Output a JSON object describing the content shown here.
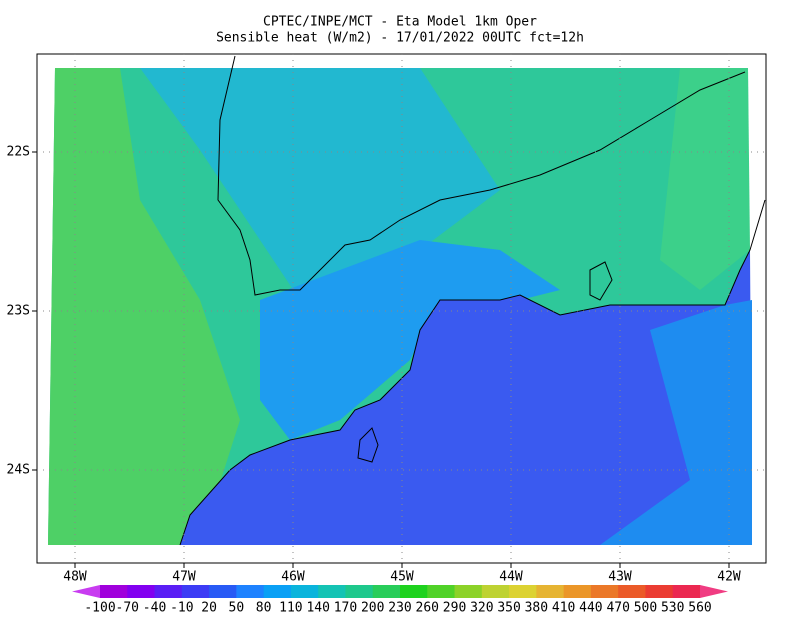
{
  "map": {
    "title": "CPTEC/INPE/MCT -  Eta Model 1km Oper",
    "subtitle": "Sensible heat (W/m2) - 17/01/2022 00UTC fct=12h",
    "lon_labels": [
      "48W",
      "47W",
      "46W",
      "45W",
      "44W",
      "43W",
      "42W"
    ],
    "lat_labels": [
      "22S",
      "23S",
      "24S"
    ],
    "colorbar": {
      "ticks": [
        -100,
        -70,
        -40,
        -10,
        20,
        50,
        80,
        110,
        140,
        170,
        200,
        230,
        260,
        290,
        320,
        350,
        380,
        410,
        440,
        470,
        500,
        530,
        560
      ],
      "colors": [
        "#c83cf0",
        "#a000dc",
        "#8200f0",
        "#5a1ef5",
        "#3c3cf5",
        "#285af5",
        "#1e82ff",
        "#0aa0f5",
        "#0ab4dc",
        "#14c3b4",
        "#1ec88c",
        "#28cd5a",
        "#1ed21e",
        "#50d228",
        "#8cd228",
        "#bed232",
        "#dcd232",
        "#e6b432",
        "#eb9628",
        "#eb7828",
        "#eb5a28",
        "#eb3c32",
        "#eb2850",
        "#f03c82"
      ]
    }
  }
}
